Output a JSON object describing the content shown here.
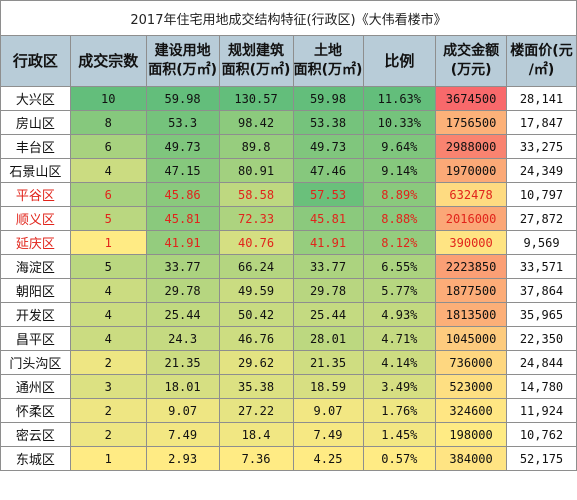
{
  "title": "2017年住宅用地成交结构特征(行政区)《大伟看楼市》",
  "headers": [
    [
      "行政区"
    ],
    [
      "成交宗数"
    ],
    [
      "建设用地",
      "面积(万㎡)"
    ],
    [
      "规划建筑",
      "面积(万㎡)"
    ],
    [
      "土地",
      "面积(万㎡)"
    ],
    [
      "比例"
    ],
    [
      "成交金额",
      "(万元)"
    ],
    [
      "楼面价(元",
      "/㎡)"
    ]
  ],
  "rows": [
    {
      "district": "大兴区",
      "count": "10",
      "build": "59.98",
      "plan": "130.57",
      "land": "59.98",
      "ratio": "11.63%",
      "amount": "3674500",
      "price": "28,141",
      "highlight": false
    },
    {
      "district": "房山区",
      "count": "8",
      "build": "53.3",
      "plan": "98.42",
      "land": "53.38",
      "ratio": "10.33%",
      "amount": "1756500",
      "price": "17,847",
      "highlight": false
    },
    {
      "district": "丰台区",
      "count": "6",
      "build": "49.73",
      "plan": "89.8",
      "land": "49.73",
      "ratio": "9.64%",
      "amount": "2988000",
      "price": "33,275",
      "highlight": false
    },
    {
      "district": "石景山区",
      "count": "4",
      "build": "47.15",
      "plan": "80.91",
      "land": "47.46",
      "ratio": "9.14%",
      "amount": "1970000",
      "price": "24,349",
      "highlight": false
    },
    {
      "district": "平谷区",
      "count": "6",
      "build": "45.86",
      "plan": "58.58",
      "land": "57.53",
      "ratio": "8.89%",
      "amount": "632478",
      "price": "10,797",
      "highlight": true
    },
    {
      "district": "顺义区",
      "count": "5",
      "build": "45.81",
      "plan": "72.33",
      "land": "45.81",
      "ratio": "8.88%",
      "amount": "2016000",
      "price": "27,872",
      "highlight": true
    },
    {
      "district": "延庆区",
      "count": "1",
      "build": "41.91",
      "plan": "40.76",
      "land": "41.91",
      "ratio": "8.12%",
      "amount": "390000",
      "price": "9,569",
      "highlight": true
    },
    {
      "district": "海淀区",
      "count": "5",
      "build": "33.77",
      "plan": "66.24",
      "land": "33.77",
      "ratio": "6.55%",
      "amount": "2223850",
      "price": "33,571",
      "highlight": false
    },
    {
      "district": "朝阳区",
      "count": "4",
      "build": "29.78",
      "plan": "49.59",
      "land": "29.78",
      "ratio": "5.77%",
      "amount": "1877500",
      "price": "37,864",
      "highlight": false
    },
    {
      "district": "开发区",
      "count": "4",
      "build": "25.44",
      "plan": "50.42",
      "land": "25.44",
      "ratio": "4.93%",
      "amount": "1813500",
      "price": "35,965",
      "highlight": false
    },
    {
      "district": "昌平区",
      "count": "4",
      "build": "24.3",
      "plan": "46.76",
      "land": "28.01",
      "ratio": "4.71%",
      "amount": "1045000",
      "price": "22,350",
      "highlight": false
    },
    {
      "district": "门头沟区",
      "count": "2",
      "build": "21.35",
      "plan": "29.62",
      "land": "21.35",
      "ratio": "4.14%",
      "amount": "736000",
      "price": "24,844",
      "highlight": false
    },
    {
      "district": "通州区",
      "count": "3",
      "build": "18.01",
      "plan": "35.38",
      "land": "18.59",
      "ratio": "3.49%",
      "amount": "523000",
      "price": "14,780",
      "highlight": false
    },
    {
      "district": "怀柔区",
      "count": "2",
      "build": "9.07",
      "plan": "27.22",
      "land": "9.07",
      "ratio": "1.76%",
      "amount": "324600",
      "price": "11,924",
      "highlight": false
    },
    {
      "district": "密云区",
      "count": "2",
      "build": "7.49",
      "plan": "18.4",
      "land": "7.49",
      "ratio": "1.45%",
      "amount": "198000",
      "price": "10,762",
      "highlight": false
    },
    {
      "district": "东城区",
      "count": "1",
      "build": "2.93",
      "plan": "7.36",
      "land": "4.25",
      "ratio": "0.57%",
      "amount": "384000",
      "price": "52,175",
      "highlight": false
    }
  ],
  "colors": {
    "header_bg": "#b8ccd8",
    "highlight_text": "#e1241b",
    "scale_low": "#63be7b",
    "scale_mid": "#ffeb84",
    "scale_high": "#f8696b"
  },
  "chart_data": {
    "type": "table",
    "title": "2017年住宅用地成交结构特征(行政区)《大伟看楼市》",
    "columns": [
      "行政区",
      "成交宗数",
      "建设用地面积(万㎡)",
      "规划建筑面积(万㎡)",
      "土地面积(万㎡)",
      "比例",
      "成交金额(万元)",
      "楼面价(元/㎡)"
    ],
    "categories": [
      "大兴区",
      "房山区",
      "丰台区",
      "石景山区",
      "平谷区",
      "顺义区",
      "延庆区",
      "海淀区",
      "朝阳区",
      "开发区",
      "昌平区",
      "门头沟区",
      "通州区",
      "怀柔区",
      "密云区",
      "东城区"
    ],
    "series": [
      {
        "name": "成交宗数",
        "values": [
          10,
          8,
          6,
          4,
          6,
          5,
          1,
          5,
          4,
          4,
          4,
          2,
          3,
          2,
          2,
          1
        ]
      },
      {
        "name": "建设用地面积(万㎡)",
        "values": [
          59.98,
          53.3,
          49.73,
          47.15,
          45.86,
          45.81,
          41.91,
          33.77,
          29.78,
          25.44,
          24.3,
          21.35,
          18.01,
          9.07,
          7.49,
          2.93
        ]
      },
      {
        "name": "规划建筑面积(万㎡)",
        "values": [
          130.57,
          98.42,
          89.8,
          80.91,
          58.58,
          72.33,
          40.76,
          66.24,
          49.59,
          50.42,
          46.76,
          29.62,
          35.38,
          27.22,
          18.4,
          7.36
        ]
      },
      {
        "name": "土地面积(万㎡)",
        "values": [
          59.98,
          53.38,
          49.73,
          47.46,
          57.53,
          45.81,
          41.91,
          33.77,
          29.78,
          25.44,
          28.01,
          21.35,
          18.59,
          9.07,
          7.49,
          4.25
        ]
      },
      {
        "name": "比例",
        "values": [
          11.63,
          10.33,
          9.64,
          9.14,
          8.89,
          8.88,
          8.12,
          6.55,
          5.77,
          4.93,
          4.71,
          4.14,
          3.49,
          1.76,
          1.45,
          0.57
        ]
      },
      {
        "name": "成交金额(万元)",
        "values": [
          3674500,
          1756500,
          2988000,
          1970000,
          632478,
          2016000,
          390000,
          2223850,
          1877500,
          1813500,
          1045000,
          736000,
          523000,
          324600,
          198000,
          384000
        ]
      },
      {
        "name": "楼面价(元/㎡)",
        "values": [
          28141,
          17847,
          33275,
          24349,
          10797,
          27872,
          9569,
          33571,
          37864,
          35965,
          22350,
          24844,
          14780,
          11924,
          10762,
          52175
        ]
      }
    ]
  }
}
